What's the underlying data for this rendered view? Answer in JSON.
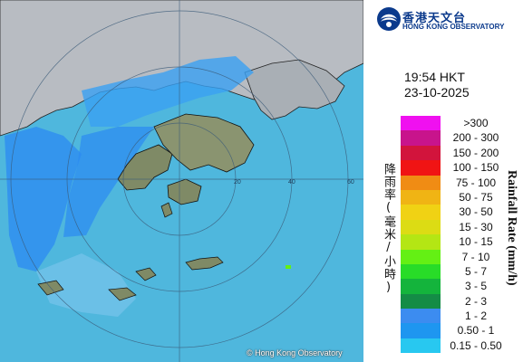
{
  "branding": {
    "name_zh": "香港天文台",
    "name_en": "HONG KONG OBSERVATORY"
  },
  "observation": {
    "time": "19:54 HKT",
    "date": "23-10-2025"
  },
  "map": {
    "copyright": "© Hong Kong Observatory",
    "range_ring_labels": [
      "60",
      "40",
      "20"
    ]
  },
  "legend": {
    "unit_zh": "降雨率(毫米/小時)",
    "unit_en": "Rainfall Rate (mm/h)",
    "items": [
      {
        "range": ">300",
        "color": "#f010f0"
      },
      {
        "range": "200 - 300",
        "color": "#c8148c"
      },
      {
        "range": "150 - 200",
        "color": "#d2143c"
      },
      {
        "range": "100 - 150",
        "color": "#f01414"
      },
      {
        "range": "75 - 100",
        "color": "#f08c14"
      },
      {
        "range": "50 - 75",
        "color": "#f0b414"
      },
      {
        "range": "30 - 50",
        "color": "#f0d214"
      },
      {
        "range": "15 - 30",
        "color": "#dcdc14"
      },
      {
        "range": "10 - 15",
        "color": "#b4e614"
      },
      {
        "range": "7 - 10",
        "color": "#64f014"
      },
      {
        "range": "5 - 7",
        "color": "#28dc28"
      },
      {
        "range": "3 - 5",
        "color": "#14b43c"
      },
      {
        "range": "2 - 3",
        "color": "#148c46"
      },
      {
        "range": "1 - 2",
        "color": "#3c8cf0"
      },
      {
        "range": "0.50 - 1",
        "color": "#1e96f0"
      },
      {
        "range": "0.15 - 0.50",
        "color": "#28c8f0"
      }
    ]
  }
}
